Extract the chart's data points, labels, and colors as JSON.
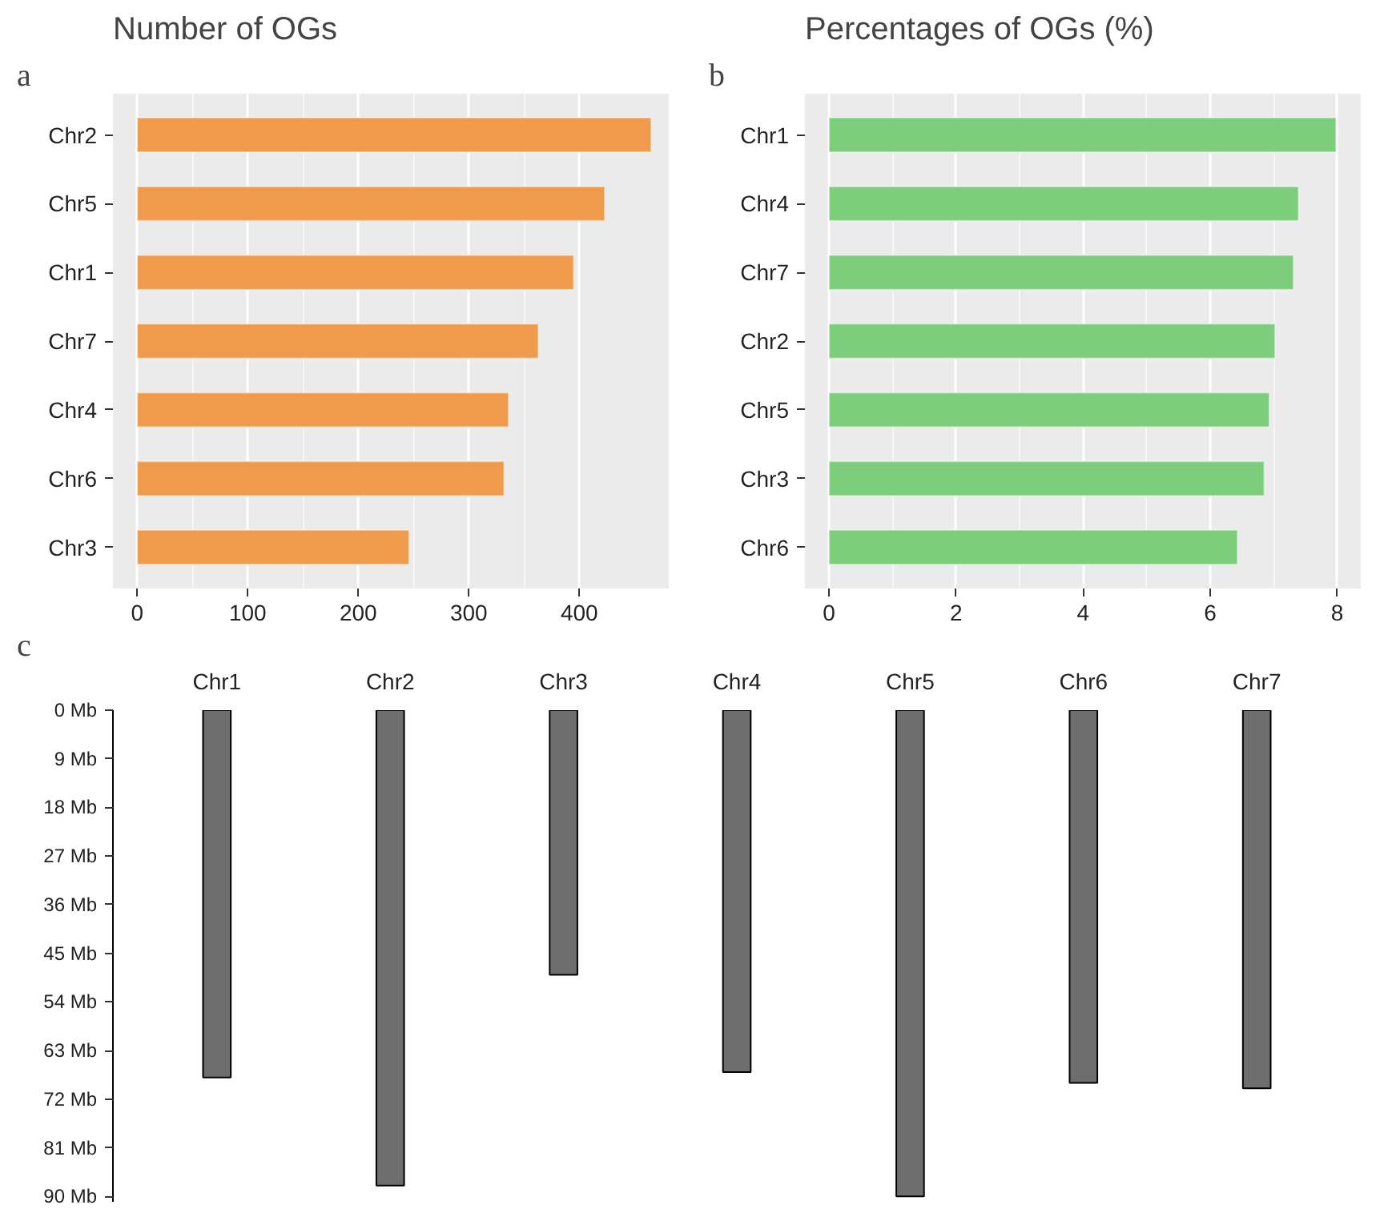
{
  "chart_data": [
    {
      "type": "bar",
      "orientation": "horizontal",
      "title": "Number of OGs",
      "annotations": [
        "a"
      ],
      "categories": [
        "Chr2",
        "Chr5",
        "Chr1",
        "Chr7",
        "Chr4",
        "Chr6",
        "Chr3"
      ],
      "values": [
        465,
        423,
        395,
        363,
        336,
        332,
        246
      ],
      "color": "#f09b4b",
      "xlim": [
        -22,
        481
      ],
      "xticks": [
        0,
        100,
        200,
        300,
        400
      ],
      "grid": "x"
    },
    {
      "type": "bar",
      "orientation": "horizontal",
      "title": "Percentages of OGs (%)",
      "annotations": [
        "b"
      ],
      "categories": [
        "Chr1",
        "Chr4",
        "Chr7",
        "Chr2",
        "Chr5",
        "Chr3",
        "Chr6"
      ],
      "values": [
        7.98,
        7.39,
        7.31,
        7.02,
        6.93,
        6.85,
        6.43
      ],
      "color": "#7dce7c",
      "xlim": [
        -0.38,
        8.37
      ],
      "xticks": [
        0,
        2,
        4,
        6,
        8
      ],
      "grid": "x"
    },
    {
      "type": "bar",
      "annotations": [
        "c"
      ],
      "categories": [
        "Chr1",
        "Chr2",
        "Chr3",
        "Chr4",
        "Chr5",
        "Chr6",
        "Chr7"
      ],
      "values": [
        68,
        88,
        49,
        67,
        90,
        69,
        70
      ],
      "color": "#6e6e6e",
      "ylim": [
        91,
        0
      ],
      "yticks": [
        {
          "value": 0,
          "label": "0 Mb"
        },
        {
          "value": 9,
          "label": "9 Mb"
        },
        {
          "value": 18,
          "label": "18 Mb"
        },
        {
          "value": 27,
          "label": "27 Mb"
        },
        {
          "value": 36,
          "label": "36 Mb"
        },
        {
          "value": 45,
          "label": "45 Mb"
        },
        {
          "value": 54,
          "label": "54 Mb"
        },
        {
          "value": 63,
          "label": "63 Mb"
        },
        {
          "value": 72,
          "label": "72 Mb"
        },
        {
          "value": 81,
          "label": "81 Mb"
        },
        {
          "value": 90,
          "label": "90 Mb"
        }
      ],
      "grid": false
    }
  ]
}
